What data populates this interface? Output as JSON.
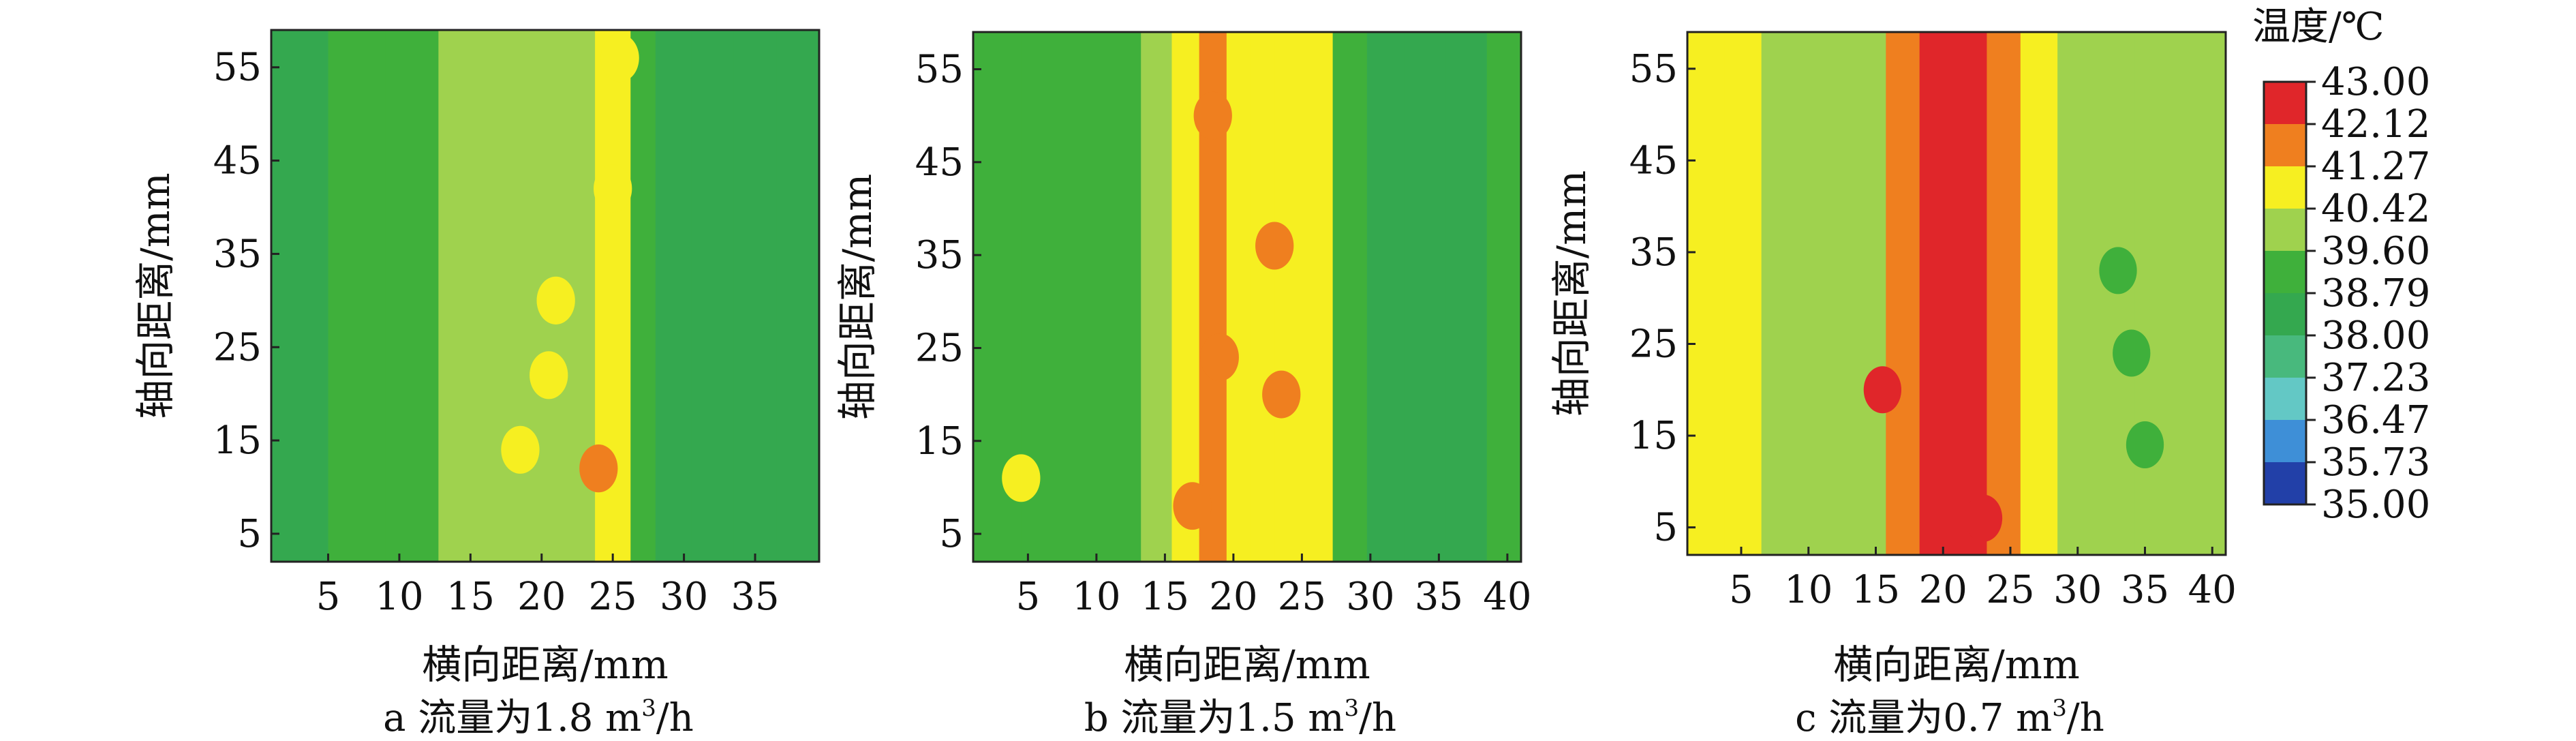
{
  "figure": {
    "colorbar": {
      "title": "温度/℃",
      "ticks": [
        "43.00",
        "42.12",
        "41.27",
        "40.42",
        "39.60",
        "38.79",
        "38.00",
        "37.23",
        "36.47",
        "35.73",
        "35.00"
      ],
      "colors": [
        "#e0262a",
        "#ef7f1f",
        "#f6ef21",
        "#9fd24e",
        "#3fb03b",
        "#34a84f",
        "#48b97d",
        "#63c8c5",
        "#3e8fd7",
        "#2240a8"
      ]
    }
  },
  "chart_data": [
    {
      "type": "heatmap",
      "caption_letter": "a",
      "caption_text": "流量为1.8 m",
      "caption_sup": "3",
      "caption_unit": "/h",
      "xlabel": "横向距离/mm",
      "ylabel": "轴向距离/mm",
      "xlim": [
        1,
        39.5
      ],
      "ylim": [
        2,
        59
      ],
      "xticks": [
        5,
        10,
        15,
        20,
        25,
        30,
        35
      ],
      "yticks": [
        5,
        15,
        25,
        35,
        45,
        55
      ],
      "column_centers_mm": [
        3,
        7,
        11,
        14.5,
        17,
        19.5,
        21.5,
        23,
        24.5,
        25.5,
        27,
        29,
        32,
        35,
        38
      ],
      "column_temps": [
        38.0,
        38.8,
        39.3,
        39.6,
        39.9,
        40.1,
        40.0,
        40.0,
        40.6,
        40.9,
        39.3,
        38.5,
        38.3,
        38.1,
        38.1
      ],
      "hot_spots": [
        {
          "x": 18.5,
          "y": 14,
          "t": 40.7
        },
        {
          "x": 20.5,
          "y": 22,
          "t": 40.6
        },
        {
          "x": 21,
          "y": 30,
          "t": 40.5
        },
        {
          "x": 24,
          "y": 12,
          "t": 41.5
        },
        {
          "x": 25,
          "y": 42,
          "t": 40.6
        },
        {
          "x": 25.5,
          "y": 56,
          "t": 40.7
        }
      ]
    },
    {
      "type": "heatmap",
      "caption_letter": "b",
      "caption_text": "流量为1.5 m",
      "caption_sup": "3",
      "caption_unit": "/h",
      "xlabel": "横向距离/mm",
      "ylabel": "轴向距离/mm",
      "xlim": [
        1,
        41
      ],
      "ylim": [
        2,
        59
      ],
      "xticks": [
        5,
        10,
        15,
        20,
        25,
        30,
        35,
        40
      ],
      "yticks": [
        5,
        15,
        25,
        35,
        45,
        55
      ],
      "column_centers_mm": [
        3,
        6,
        9,
        12,
        14.5,
        16.5,
        18.5,
        20.5,
        22,
        24,
        26,
        28.5,
        31,
        34,
        37,
        40
      ],
      "column_temps": [
        39.2,
        39.3,
        38.9,
        39.4,
        40.0,
        40.7,
        41.4,
        40.8,
        40.5,
        40.7,
        40.6,
        39.0,
        38.6,
        38.3,
        38.7,
        38.9
      ],
      "hot_spots": [
        {
          "x": 4.5,
          "y": 11,
          "t": 40.6
        },
        {
          "x": 19,
          "y": 24,
          "t": 41.6
        },
        {
          "x": 23,
          "y": 36,
          "t": 41.5
        },
        {
          "x": 23.5,
          "y": 20,
          "t": 41.6
        },
        {
          "x": 18.5,
          "y": 50,
          "t": 41.5
        },
        {
          "x": 17,
          "y": 8,
          "t": 41.5
        }
      ]
    },
    {
      "type": "heatmap",
      "caption_letter": "c",
      "caption_text": "流量为0.7 m",
      "caption_sup": "3",
      "caption_unit": "/h",
      "xlabel": "横向距离/mm",
      "ylabel": "轴向距离/mm",
      "xlim": [
        1,
        41
      ],
      "ylim": [
        2,
        59
      ],
      "xticks": [
        5,
        10,
        15,
        20,
        25,
        30,
        35,
        40
      ],
      "yticks": [
        5,
        15,
        25,
        35,
        45,
        55
      ],
      "column_centers_mm": [
        2.5,
        5,
        8,
        11.5,
        14.5,
        17,
        19.5,
        22,
        24.5,
        27,
        30,
        33,
        35.5,
        38.5,
        40.5
      ],
      "column_temps": [
        40.7,
        41.1,
        40.0,
        39.8,
        40.2,
        41.3,
        42.2,
        42.6,
        42.0,
        41.2,
        40.0,
        39.9,
        39.8,
        40.0,
        40.4
      ],
      "hot_spots": [
        {
          "x": 34,
          "y": 24,
          "t": 39.2
        },
        {
          "x": 35,
          "y": 14,
          "t": 39.3
        },
        {
          "x": 33,
          "y": 33,
          "t": 39.3
        },
        {
          "x": 15.5,
          "y": 20,
          "t": 42.3
        },
        {
          "x": 23,
          "y": 6,
          "t": 42.2
        }
      ]
    }
  ]
}
